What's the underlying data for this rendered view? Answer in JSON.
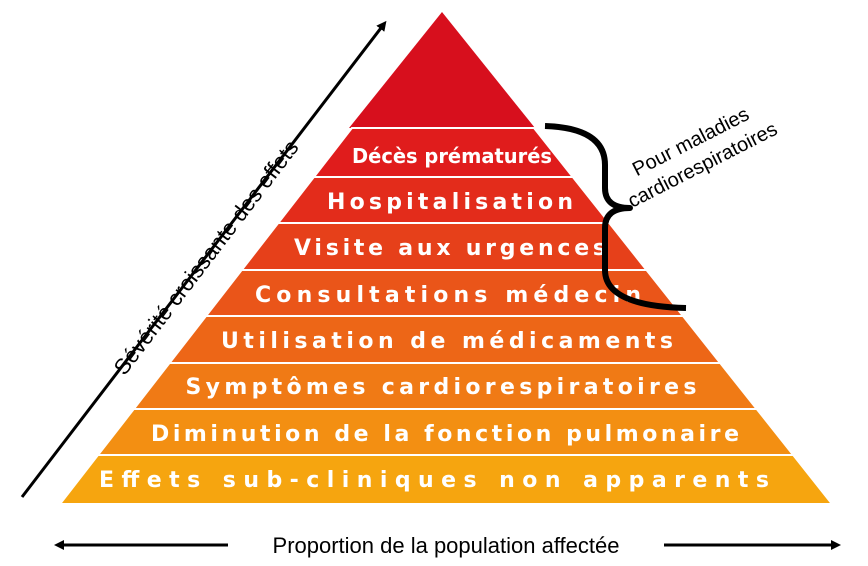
{
  "diagram": {
    "type": "pyramid",
    "apex_color": "#d70f1d",
    "levels": [
      {
        "label": "Décès prématurés",
        "color": "#e01c1c"
      },
      {
        "label": "Hospitalisation",
        "color": "#e32c1b"
      },
      {
        "label": "Visite aux urgences",
        "color": "#e6401a"
      },
      {
        "label": "Consultations médecin",
        "color": "#ea5519"
      },
      {
        "label": "Utilisation de médicaments",
        "color": "#ed6617"
      },
      {
        "label": "Symptômes cardiorespiratoires",
        "color": "#f07a15"
      },
      {
        "label": "Diminution de la fonction pulmonaire",
        "color": "#f38f12"
      },
      {
        "label": "Effets sub-cliniques non apparents",
        "color": "#f6a50f"
      }
    ],
    "bracket_label_line1": "Pour maladies",
    "bracket_label_line2": "cardiorespiratoires",
    "vertical_axis_label": "Sévérité croissante des effets",
    "horizontal_axis_label": "Proportion de la population affectée"
  }
}
